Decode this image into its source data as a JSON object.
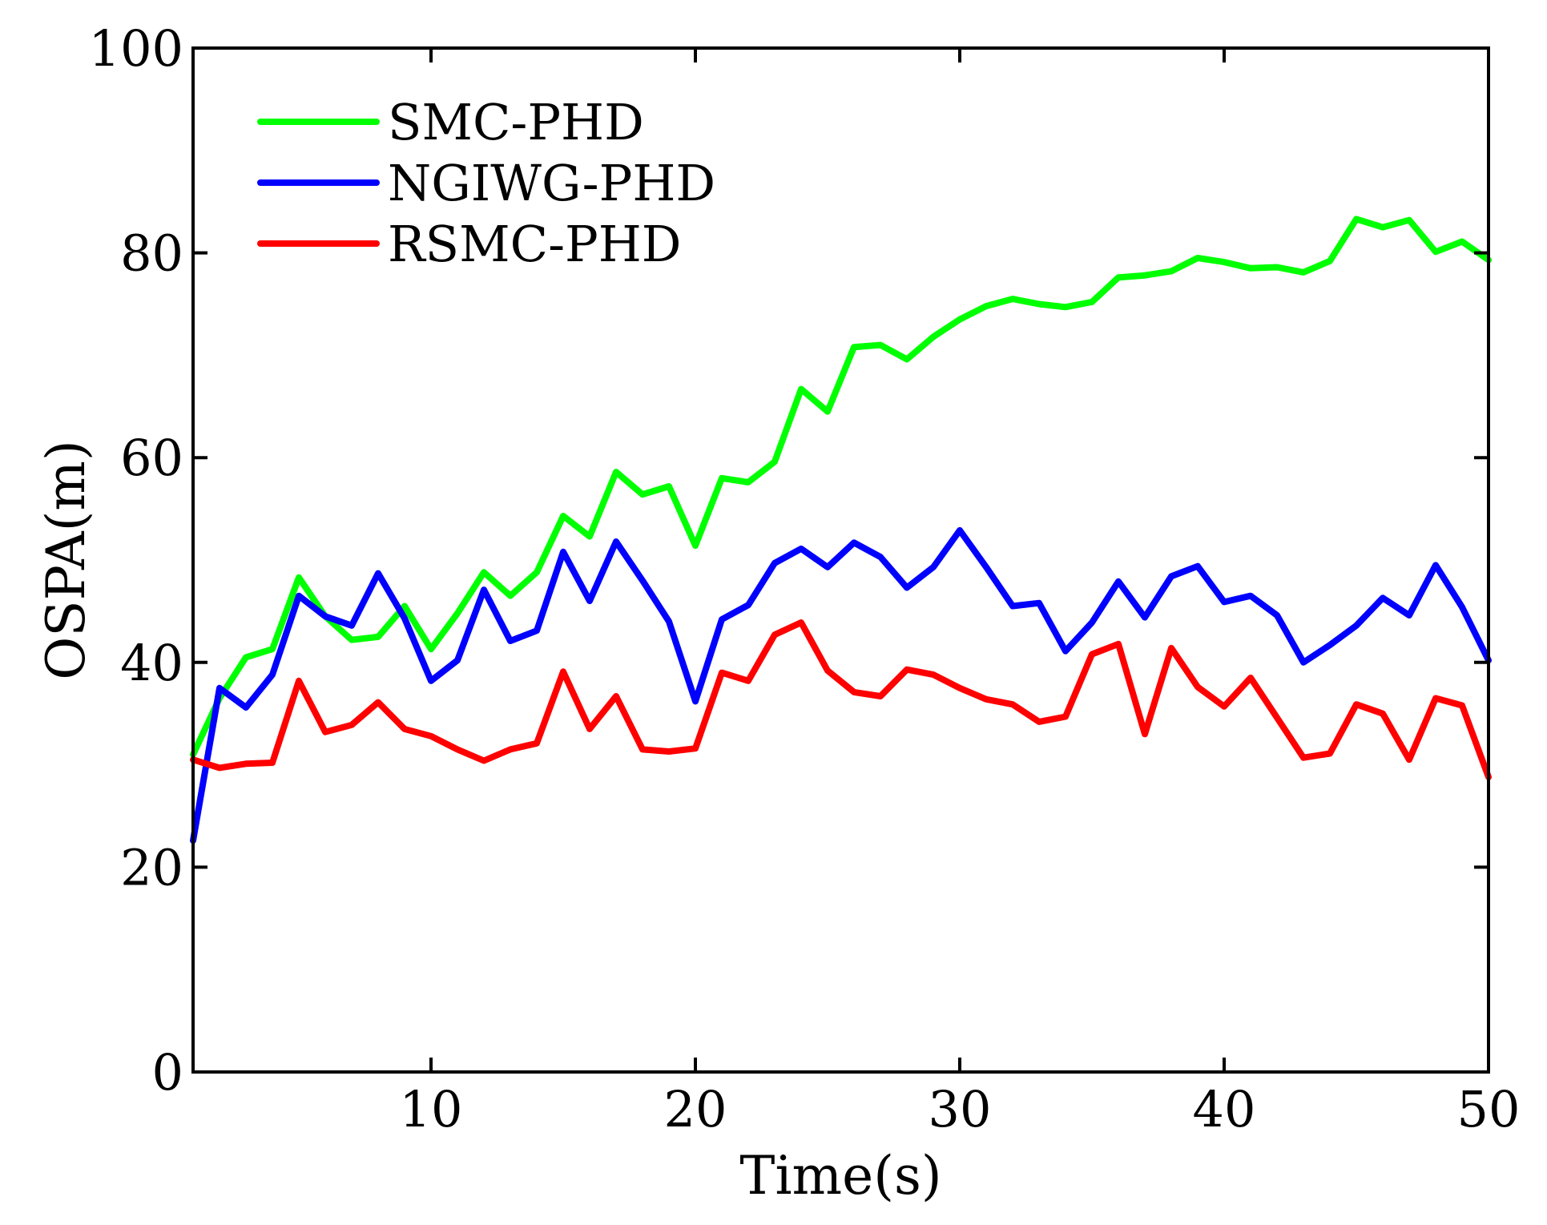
{
  "chart_data": {
    "type": "line",
    "title": "",
    "xlabel": "Time(s)",
    "ylabel": "OSPA(m)",
    "xlim": [
      1,
      50
    ],
    "ylim": [
      0,
      100
    ],
    "xticks": [
      10,
      20,
      30,
      40,
      50
    ],
    "yticks": [
      0,
      20,
      40,
      60,
      80,
      100
    ],
    "grid": false,
    "legend_position": "top-left",
    "x": [
      1,
      2,
      3,
      4,
      5,
      6,
      7,
      8,
      9,
      10,
      11,
      12,
      13,
      14,
      15,
      16,
      17,
      18,
      19,
      20,
      21,
      22,
      23,
      24,
      25,
      26,
      27,
      28,
      29,
      30,
      31,
      32,
      33,
      34,
      35,
      36,
      37,
      38,
      39,
      40,
      41,
      42,
      43,
      44,
      45,
      46,
      47,
      48,
      49,
      50
    ],
    "series": [
      {
        "name": "SMC-PHD",
        "color": "#00ff00",
        "values": [
          31,
          36.5,
          40.5,
          41.3,
          48.3,
          44.5,
          42.2,
          42.5,
          45.5,
          41.3,
          44.8,
          48.8,
          46.5,
          48.8,
          54.3,
          52.3,
          58.6,
          56.4,
          57.2,
          51.4,
          58,
          57.6,
          59.6,
          66.7,
          64.5,
          70.8,
          71,
          69.6,
          71.8,
          73.5,
          74.8,
          75.5,
          75,
          74.7,
          75.2,
          77.6,
          77.8,
          78.2,
          79.5,
          79.1,
          78.5,
          78.6,
          78.1,
          79.2,
          83.3,
          82.5,
          83.2,
          80.1,
          81.1,
          79.3
        ]
      },
      {
        "name": "NGIWG-PHD",
        "color": "#0000ff",
        "values": [
          22.6,
          37.5,
          35.6,
          38.8,
          46.5,
          44.5,
          43.6,
          48.7,
          44.3,
          38.2,
          40.2,
          47.1,
          42.1,
          43.1,
          50.8,
          46,
          51.8,
          48,
          44,
          36.2,
          44.2,
          45.6,
          49.7,
          51.1,
          49.3,
          51.7,
          50.3,
          47.3,
          49.3,
          52.9,
          49.3,
          45.5,
          45.8,
          41.1,
          43.9,
          47.9,
          44.4,
          48.4,
          49.4,
          45.9,
          46.5,
          44.6,
          40,
          41.7,
          43.6,
          46.3,
          44.6,
          49.5,
          45.4,
          40.2
        ]
      },
      {
        "name": "RSMC-PHD",
        "color": "#ff0000",
        "values": [
          30.5,
          29.7,
          30.1,
          30.2,
          38.2,
          33.2,
          33.9,
          36.1,
          33.5,
          32.8,
          31.5,
          30.4,
          31.5,
          32.1,
          39.1,
          33.5,
          36.7,
          31.5,
          31.3,
          31.6,
          39,
          38.2,
          42.7,
          43.9,
          39.2,
          37.1,
          36.7,
          39.3,
          38.8,
          37.5,
          36.4,
          35.9,
          34.2,
          34.7,
          40.8,
          41.8,
          33,
          41.4,
          37.6,
          35.7,
          38.5,
          34.6,
          30.7,
          31.1,
          35.9,
          35,
          30.5,
          36.5,
          35.8,
          28.8
        ]
      }
    ]
  }
}
